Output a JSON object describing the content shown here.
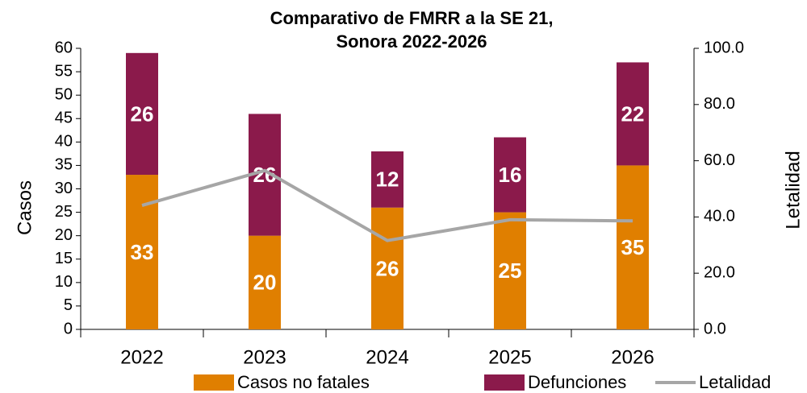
{
  "chart_data": {
    "type": "stacked_bar_line",
    "title": [
      "Comparativo de FMRR a la SE 21,",
      "Sonora 2022-2026"
    ],
    "ylabel": "Casos",
    "y2label": "Letalidad",
    "categories": [
      "2022",
      "2023",
      "2024",
      "2025",
      "2026"
    ],
    "series": [
      {
        "name": "Casos no fatales",
        "color": "#E07F00",
        "values": [
          33,
          20,
          26,
          25,
          35
        ]
      },
      {
        "name": "Defunciones",
        "color": "#8B1A4B",
        "values": [
          26,
          26,
          12,
          16,
          22
        ]
      },
      {
        "name": "Letalidad",
        "color": "#A6A6A6",
        "axis": "y2",
        "values": [
          44.1,
          56.5,
          31.6,
          39.0,
          38.6
        ]
      }
    ],
    "ylim": [
      0,
      60
    ],
    "yticks": [
      0,
      5,
      10,
      15,
      20,
      25,
      30,
      35,
      40,
      45,
      50,
      55,
      60
    ],
    "y2lim": [
      0,
      100
    ],
    "y2ticks": [
      {
        "value": 0,
        "label": "0.0"
      },
      {
        "value": 20,
        "label": "20.0"
      },
      {
        "value": 40,
        "label": "40.0"
      },
      {
        "value": 60,
        "label": "60.0"
      },
      {
        "value": 80,
        "label": "80.0"
      },
      {
        "value": 100,
        "label": "100.0"
      }
    ],
    "legend": "bottom"
  }
}
